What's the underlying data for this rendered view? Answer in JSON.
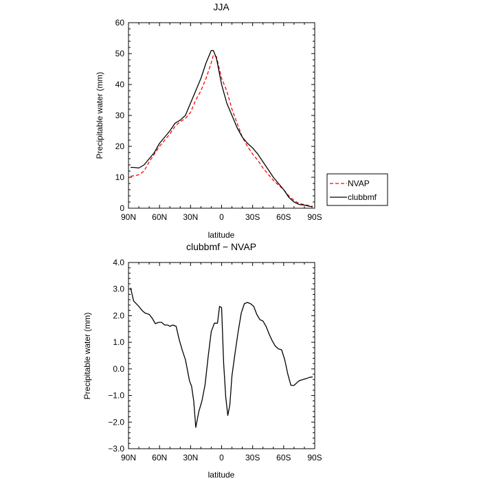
{
  "chart_data": [
    {
      "type": "line",
      "title": "JJA",
      "xlabel": "latitude",
      "ylabel": "Precipitable water (mm)",
      "xlim": [
        90,
        -90
      ],
      "ylim": [
        0,
        60
      ],
      "xticks": [
        90,
        60,
        30,
        0,
        -30,
        -60,
        -90
      ],
      "xtick_labels": [
        "90N",
        "60N",
        "30N",
        "0",
        "30S",
        "60S",
        "90S"
      ],
      "yticks": [
        0,
        10,
        20,
        30,
        40,
        50,
        60
      ],
      "ytick_labels": [
        "0",
        "10",
        "20",
        "30",
        "40",
        "50",
        "60"
      ],
      "legend_position": "right",
      "series": [
        {
          "name": "NVAP",
          "color": "#ff0000",
          "dash": "dashed",
          "x": [
            88,
            85,
            80,
            75,
            70,
            65,
            60,
            55,
            50,
            45,
            40,
            35,
            30,
            25,
            20,
            15,
            10,
            8,
            5,
            0,
            -5,
            -10,
            -15,
            -20,
            -25,
            -30,
            -35,
            -40,
            -45,
            -50,
            -55,
            -60,
            -65,
            -70,
            -75,
            -80,
            -85,
            -88
          ],
          "y": [
            10.3,
            10.5,
            10.8,
            12,
            15,
            17.5,
            20,
            22,
            24,
            26.5,
            28,
            29,
            31,
            35,
            38,
            42,
            47,
            49.5,
            49,
            42,
            38,
            32,
            27.5,
            23,
            20,
            17.5,
            15.5,
            13,
            11,
            9,
            7.5,
            6,
            4,
            2.5,
            1.5,
            1.2,
            0.8,
            0.6
          ]
        },
        {
          "name": "clubbmf",
          "color": "#000000",
          "dash": "solid",
          "x": [
            88,
            85,
            80,
            75,
            70,
            65,
            60,
            55,
            50,
            45,
            40,
            35,
            30,
            25,
            20,
            15,
            10,
            8,
            5,
            0,
            -5,
            -10,
            -15,
            -20,
            -25,
            -30,
            -35,
            -40,
            -45,
            -50,
            -55,
            -60,
            -65,
            -70,
            -75,
            -80,
            -85,
            -88
          ],
          "y": [
            13.2,
            13.2,
            13,
            14,
            16,
            18,
            21,
            23,
            25,
            27.5,
            28.5,
            30,
            34,
            38,
            42,
            47,
            51,
            51,
            48.5,
            40,
            34,
            30,
            26,
            23,
            21,
            19.5,
            17.5,
            15,
            12.5,
            10,
            8,
            6,
            3.5,
            2,
            1.2,
            1,
            0.6,
            0.4
          ]
        }
      ]
    },
    {
      "type": "line",
      "title": "clubbmf − NVAP",
      "xlabel": "latitude",
      "ylabel": "Precipitable water (mm)",
      "xlim": [
        90,
        -90
      ],
      "ylim": [
        -3,
        4
      ],
      "xticks": [
        90,
        60,
        30,
        0,
        -30,
        -60,
        -90
      ],
      "xtick_labels": [
        "90N",
        "60N",
        "30N",
        "0",
        "30S",
        "60S",
        "90S"
      ],
      "yticks": [
        -3,
        -2,
        -1,
        0,
        1,
        2,
        3,
        4
      ],
      "ytick_labels": [
        "−3.0",
        "−2.0",
        "−1.0",
        "0.0",
        "1.0",
        "2.0",
        "3.0",
        "4.0"
      ],
      "series": [
        {
          "color": "#000000",
          "dash": "solid",
          "x": [
            88,
            85,
            80,
            77,
            74,
            70,
            67,
            64,
            61,
            58,
            55,
            52,
            50,
            47,
            44,
            41,
            38,
            35,
            33,
            31,
            29,
            27,
            25,
            22,
            19,
            16,
            13,
            10,
            7,
            6,
            4,
            2,
            0,
            -2,
            -4,
            -6,
            -8,
            -10,
            -13,
            -16,
            -19,
            -22,
            -25,
            -28,
            -31,
            -34,
            -37,
            -40,
            -43,
            -46,
            -49,
            -52,
            -55,
            -58,
            -61,
            -64,
            -67,
            -70,
            -72,
            -74,
            -76,
            -79,
            -82,
            -85,
            -88
          ],
          "y": [
            3.05,
            2.55,
            2.35,
            2.2,
            2.1,
            2.05,
            1.9,
            1.7,
            1.75,
            1.75,
            1.65,
            1.65,
            1.6,
            1.65,
            1.6,
            1.1,
            0.7,
            0.35,
            -0.05,
            -0.45,
            -0.65,
            -1.2,
            -2.2,
            -1.6,
            -1.2,
            -0.6,
            0.45,
            1.4,
            1.72,
            1.72,
            1.72,
            2.35,
            2.3,
            0.2,
            -1.05,
            -1.75,
            -1.35,
            -0.25,
            0.6,
            1.4,
            2.1,
            2.45,
            2.5,
            2.45,
            2.35,
            2.05,
            1.85,
            1.8,
            1.6,
            1.3,
            1.05,
            0.85,
            0.75,
            0.72,
            0.35,
            -0.2,
            -0.62,
            -0.62,
            -0.55,
            -0.47,
            -0.43,
            -0.4,
            -0.36,
            -0.32,
            -0.3
          ]
        }
      ]
    }
  ]
}
